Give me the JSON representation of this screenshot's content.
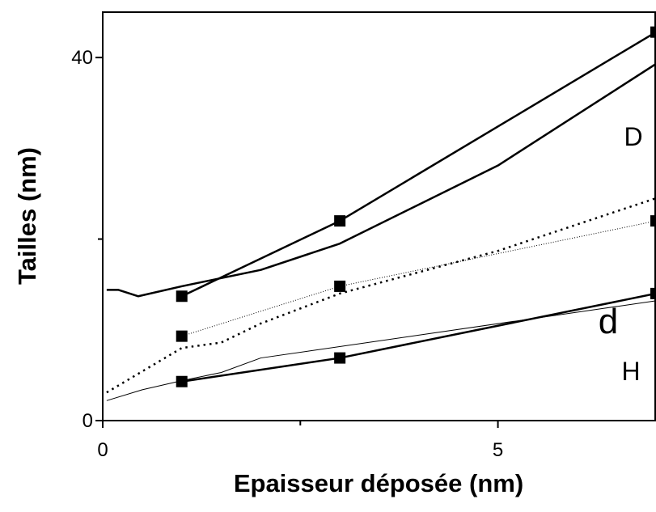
{
  "chart_data": {
    "type": "line",
    "x_label": "Epaisseur déposée (nm)",
    "y_label": "Tailles (nm)",
    "xlim": [
      0,
      7
    ],
    "ylim": [
      0,
      45
    ],
    "xticks": [
      0,
      5
    ],
    "yticks": [
      0,
      40
    ],
    "minor_xticks": [
      2.5
    ],
    "minor_yticks": [
      20
    ],
    "annotations": [
      "D",
      "d",
      "H"
    ],
    "series": [
      {
        "color": "#000000",
        "style": "solid",
        "width": 2.5,
        "marker": "square",
        "x": [
          1,
          3,
          7
        ],
        "values": [
          13.7,
          22.0,
          42.8
        ]
      },
      {
        "color": "#000000",
        "style": "solid",
        "width": 2.5,
        "marker": "none",
        "x": [
          0.05,
          0.2,
          0.45,
          1,
          2,
          3,
          5,
          7
        ],
        "values": [
          14.4,
          14.4,
          13.7,
          14.8,
          16.6,
          19.5,
          28.1,
          39.3
        ]
      },
      {
        "color": "#000000",
        "style": "dotted",
        "width": 2.5,
        "marker": "none",
        "x": [
          0.05,
          1,
          1.5,
          2,
          3,
          5,
          7
        ],
        "values": [
          3.1,
          8.0,
          8.6,
          10.7,
          14.0,
          18.7,
          24.5
        ]
      },
      {
        "color": "#000000",
        "style": "dotted",
        "width": 1,
        "marker": "square",
        "x": [
          1,
          3,
          7
        ],
        "values": [
          9.3,
          14.8,
          22.0
        ]
      },
      {
        "color": "#000000",
        "style": "solid",
        "width": 1,
        "marker": "none",
        "x": [
          0.05,
          0.5,
          1,
          1.5,
          2,
          7
        ],
        "values": [
          2.2,
          3.4,
          4.4,
          5.3,
          6.9,
          13.2
        ]
      },
      {
        "color": "#000000",
        "style": "solid",
        "width": 2.5,
        "marker": "square",
        "x": [
          1,
          3,
          7
        ],
        "values": [
          4.3,
          6.9,
          14.0
        ]
      }
    ]
  }
}
